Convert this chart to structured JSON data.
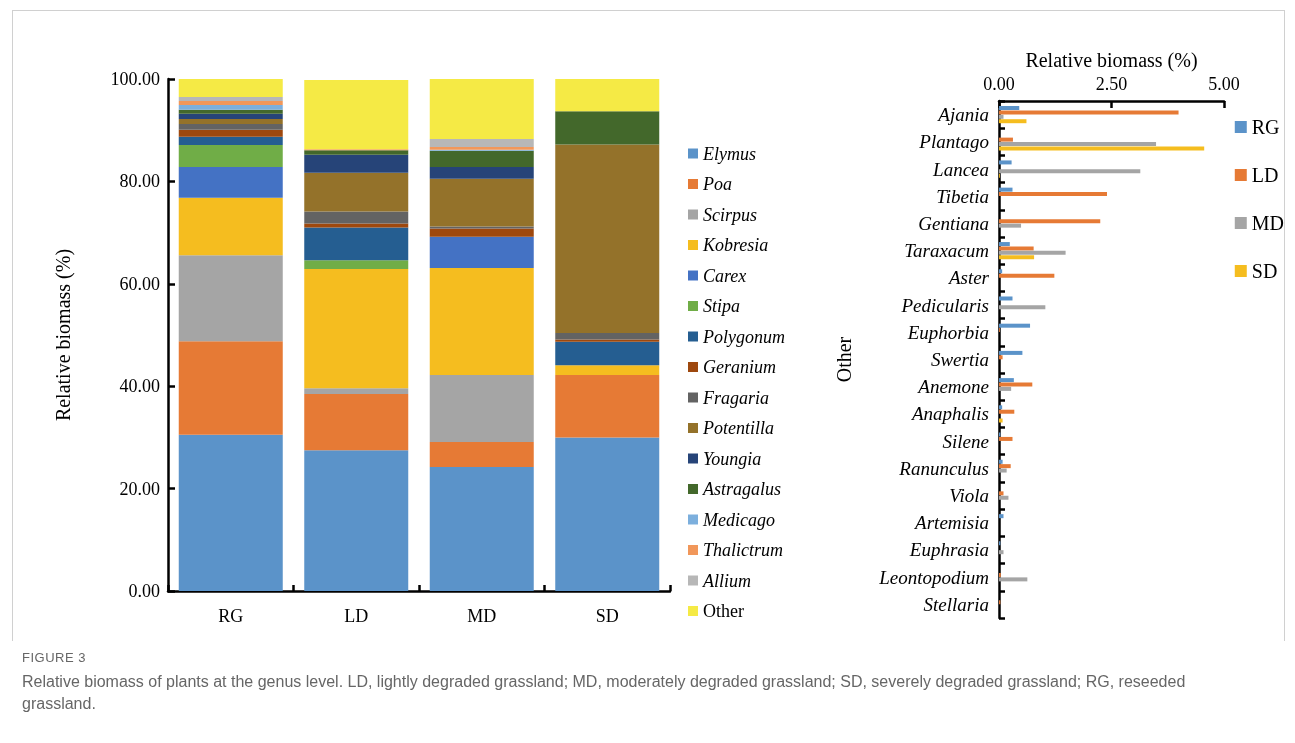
{
  "chart_data": [
    {
      "type": "bar",
      "stacked": true,
      "ylabel": "Relative biomass (%)",
      "categories": [
        "RG",
        "LD",
        "MD",
        "SD"
      ],
      "ylim": [
        0,
        100
      ],
      "yticks": [
        {
          "value": 0,
          "label": "0.00"
        },
        {
          "value": 20,
          "label": "20.00"
        },
        {
          "value": 40,
          "label": "40.00"
        },
        {
          "value": 60,
          "label": "60.00"
        },
        {
          "value": 80,
          "label": "80.00"
        },
        {
          "value": 100,
          "label": "100.00"
        }
      ],
      "grid": false,
      "legend": "right",
      "series": [
        {
          "name": "Elymus",
          "color": "#5b93c9",
          "values": [
            30.5,
            27.5,
            24.2,
            30.0
          ]
        },
        {
          "name": "Poa",
          "color": "#e67a35",
          "values": [
            18.3,
            11.0,
            4.9,
            12.2
          ]
        },
        {
          "name": "Scirpus",
          "color": "#a5a5a5",
          "values": [
            16.8,
            1.1,
            13.1,
            0
          ]
        },
        {
          "name": "Kobresia",
          "color": "#f5bd1f",
          "values": [
            11.2,
            23.3,
            20.9,
            1.9
          ]
        },
        {
          "name": "Carex",
          "color": "#4472c4",
          "values": [
            6.0,
            0,
            6.1,
            0
          ]
        },
        {
          "name": "Stipa",
          "color": "#70ad47",
          "values": [
            4.3,
            1.7,
            0,
            0
          ]
        },
        {
          "name": "Polygonum",
          "color": "#255e91",
          "values": [
            1.6,
            6.4,
            0,
            4.6
          ]
        },
        {
          "name": "Geranium",
          "color": "#9e480e",
          "values": [
            1.4,
            0.8,
            1.6,
            0.4
          ]
        },
        {
          "name": "Fragaria",
          "color": "#636363",
          "values": [
            1.1,
            2.3,
            0.4,
            1.3
          ]
        },
        {
          "name": "Potentilla",
          "color": "#94722a",
          "values": [
            1.0,
            7.6,
            9.3,
            36.8
          ]
        },
        {
          "name": "Youngia",
          "color": "#264478",
          "values": [
            1.0,
            3.5,
            2.3,
            0
          ]
        },
        {
          "name": "Astragalus",
          "color": "#43682b",
          "values": [
            0.8,
            0.9,
            3.2,
            6.5
          ]
        },
        {
          "name": "Medicago",
          "color": "#7cafdd",
          "values": [
            0.9,
            0,
            0.2,
            0
          ]
        },
        {
          "name": "Thalictrum",
          "color": "#f1975a",
          "values": [
            0.8,
            0.2,
            0.5,
            0
          ]
        },
        {
          "name": "Allium",
          "color": "#b7b7b7",
          "values": [
            0.8,
            null,
            1.6,
            0
          ]
        },
        {
          "name": "Other",
          "color": "#f5ea45",
          "values": [
            3.5,
            13.5,
            11.7,
            6.3
          ]
        }
      ],
      "annotations": [
        "FIGURE 3",
        "Relative biomass of plants at the genus level. LD, lightly degraded grassland; MD, moderately degraded grassland; SD, severely degraded grassland; RG, reseeded grassland."
      ]
    },
    {
      "type": "bar",
      "orientation": "horizontal",
      "xlabel": "Relative biomass (%)",
      "ylabel": "Other",
      "categories": [
        "Ajania",
        "Plantago",
        "Lancea",
        "Tibetia",
        "Gentiana",
        "Taraxacum",
        "Aster",
        "Pedicularis",
        "Euphorbia",
        "Swertia",
        "Anemone",
        "Anaphalis",
        "Silene",
        "Ranunculus",
        "Viola",
        "Artemisia",
        "Euphrasia",
        "Leontopodium",
        "Stellaria"
      ],
      "xlim": [
        0,
        5
      ],
      "xticks": [
        {
          "value": 0,
          "label": "0.00"
        },
        {
          "value": 2.5,
          "label": "2.50"
        },
        {
          "value": 5,
          "label": "5.00"
        }
      ],
      "grid": false,
      "legend": "top right",
      "series": [
        {
          "name": "RG",
          "color": "#5b93c9",
          "values": [
            0.45,
            0,
            0.28,
            0.3,
            0,
            0.24,
            0.07,
            0.3,
            0.69,
            0.52,
            0.33,
            0.07,
            0.03,
            0.08,
            0,
            0.1,
            0.03,
            0,
            0
          ]
        },
        {
          "name": "LD",
          "color": "#e67a35",
          "values": [
            3.99,
            0.31,
            0,
            2.4,
            2.25,
            0.77,
            1.23,
            0,
            0.02,
            0.08,
            0.74,
            0.34,
            0.3,
            0.26,
            0.1,
            0,
            0,
            0.04,
            0.03
          ]
        },
        {
          "name": "MD",
          "color": "#a5a5a5",
          "values": [
            0.1,
            3.49,
            3.14,
            0,
            0.49,
            1.48,
            0,
            1.03,
            null,
            0,
            0.27,
            0,
            0,
            0.17,
            0.21,
            0,
            0.1,
            0.63,
            0
          ]
        },
        {
          "name": "SD",
          "color": "#f5bd1f",
          "values": [
            0.61,
            4.56,
            0.02,
            0,
            0,
            0.78,
            0,
            0,
            0,
            0,
            0,
            0.08,
            0,
            0,
            0,
            0,
            0,
            0,
            0
          ]
        }
      ]
    }
  ]
}
